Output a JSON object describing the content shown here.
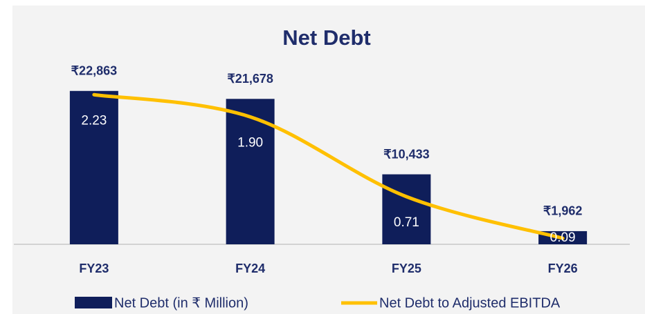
{
  "chart_data": {
    "type": "bar-line",
    "title": "Net Debt",
    "categories": [
      "FY23",
      "FY24",
      "FY25",
      "FY26"
    ],
    "series": [
      {
        "name": "Net Debt (in ₹ Million)",
        "color": "#0f1e5a",
        "type": "bar",
        "values": [
          22863,
          21678,
          10433,
          1962
        ],
        "value_labels": [
          "₹22,863",
          "₹21,678",
          "₹10,433",
          "₹1,962"
        ]
      },
      {
        "name": "Net Debt to Adjusted EBITDA",
        "color": "#ffc000",
        "type": "line",
        "axis": "y2",
        "values": [
          2.23,
          1.9,
          0.71,
          0.09
        ],
        "value_labels": [
          "2.23",
          "1.90",
          "0.71",
          "0.09"
        ]
      }
    ],
    "ylim": [
      0,
      25000
    ],
    "y2lim": [
      0,
      2.5
    ],
    "legend": "bottom"
  }
}
